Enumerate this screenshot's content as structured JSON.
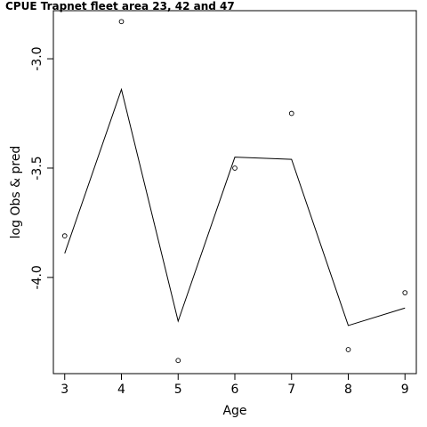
{
  "chart_data": {
    "type": "line",
    "title": "CPUE Trapnet fleet area 23, 42 and 47",
    "xlabel": "Age",
    "ylabel": "log Obs & pred",
    "x": [
      3,
      4,
      5,
      6,
      7,
      8,
      9
    ],
    "xticks": [
      "3",
      "4",
      "5",
      "6",
      "7",
      "8",
      "9"
    ],
    "yticks": [
      -3.0,
      -3.5,
      -4.0
    ],
    "ytick_labels": [
      "-3.0",
      "-3.5",
      "-4.0"
    ],
    "xlim": [
      2.8,
      9.2
    ],
    "ylim": [
      -4.44,
      -2.78
    ],
    "grid": false,
    "series": [
      {
        "role": "observed",
        "style": "points",
        "values": [
          -3.81,
          -2.83,
          -4.38,
          -3.5,
          -3.25,
          -4.33,
          -4.07
        ]
      },
      {
        "role": "predicted",
        "style": "line",
        "values": [
          -3.89,
          -3.14,
          -4.2,
          -3.45,
          -3.46,
          -4.22,
          -4.14
        ]
      }
    ]
  }
}
